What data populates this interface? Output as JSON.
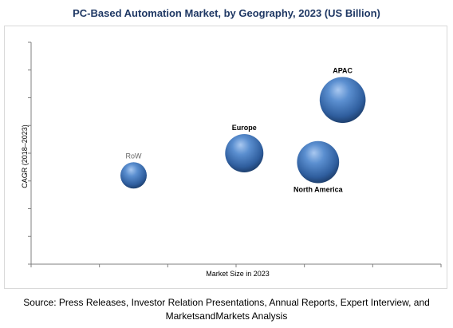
{
  "chart_data": {
    "type": "scatter",
    "title": "PC-Based Automation Market, by Geography, 2023 (US Billion)",
    "xlabel": "Market Size in 2023",
    "ylabel": "CAGR (2018–2023)",
    "bubble": true,
    "x_tick_count": 6,
    "y_tick_count": 8,
    "series": [
      {
        "label": "RoW",
        "x": 0.25,
        "y": 0.4,
        "size": 0.55,
        "label_position": "above",
        "label_color": "#666666"
      },
      {
        "label": "Europe",
        "x": 0.52,
        "y": 0.5,
        "size": 0.8,
        "label_position": "above",
        "label_color": "#000000"
      },
      {
        "label": "North America",
        "x": 0.7,
        "y": 0.46,
        "size": 0.88,
        "label_position": "below",
        "label_color": "#000000"
      },
      {
        "label": "APAC",
        "x": 0.76,
        "y": 0.74,
        "size": 0.96,
        "label_position": "above",
        "label_color": "#000000"
      }
    ],
    "bubble_color": "#3e6fb0"
  },
  "source_text": "Source: Press Releases, Investor Relation Presentations, Annual Reports, Expert Interview, and MarketsandMarkets Analysis"
}
